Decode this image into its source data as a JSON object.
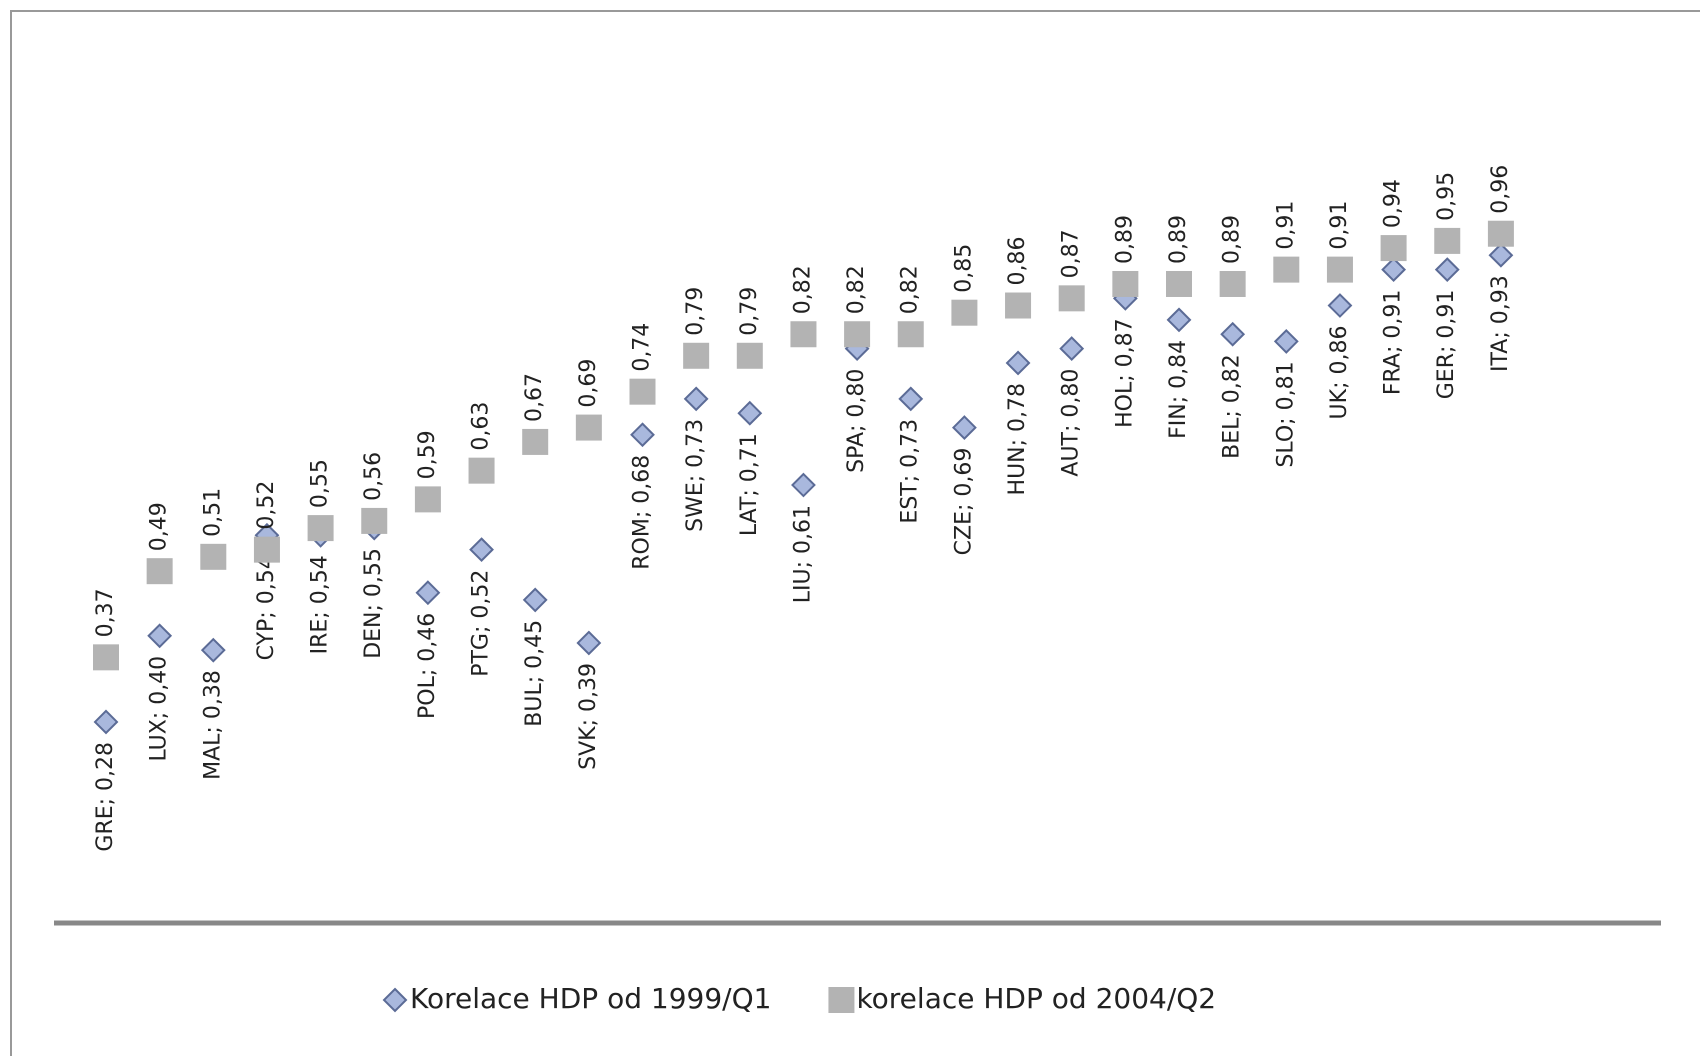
{
  "chart_data": {
    "type": "line",
    "connect_points": false,
    "legend": "bottom",
    "ylim": [
      0,
      1.2
    ],
    "series": [
      {
        "name": "Korelace HDP od 1999/Q1",
        "color": "#a9b8dd",
        "marker": "diamond",
        "label_side": "below",
        "values": [
          0.28,
          0.4,
          0.38,
          0.54,
          0.54,
          0.55,
          0.46,
          0.52,
          0.45,
          0.39,
          0.68,
          0.73,
          0.71,
          0.61,
          0.8,
          0.73,
          0.69,
          0.78,
          0.8,
          0.87,
          0.84,
          0.82,
          0.81,
          0.86,
          0.91,
          0.91,
          0.93
        ],
        "value_labels": [
          "GRE; 0,28",
          "LUX; 0,40",
          "MAL; 0,38",
          "CYP; 0,54",
          "IRE; 0,54",
          "DEN; 0,55",
          "POL; 0,46",
          "PTG; 0,52",
          "BUL; 0,45",
          "SVK; 0,39",
          "ROM; 0,68",
          "SWE; 0,73",
          "LAT; 0,71",
          "LIU; 0,61",
          "SPA; 0,80",
          "EST; 0,73",
          "CZE; 0,69",
          "HUN; 0,78",
          "AUT; 0,80",
          "HOL; 0,87",
          "FIN; 0,84",
          "BEL; 0,82",
          "SLO; 0,81",
          "UK; 0,86",
          "FRA; 0,91",
          "GER; 0,91",
          "ITA; 0,93"
        ]
      },
      {
        "name": "korelace HDP od 2004/Q2",
        "color": "#b3b3b3",
        "marker": "square",
        "label_side": "above",
        "values": [
          0.37,
          0.49,
          0.51,
          0.52,
          0.55,
          0.56,
          0.59,
          0.63,
          0.67,
          0.69,
          0.74,
          0.79,
          0.79,
          0.82,
          0.82,
          0.82,
          0.85,
          0.86,
          0.87,
          0.89,
          0.89,
          0.89,
          0.91,
          0.91,
          0.94,
          0.95,
          0.96
        ],
        "value_labels": [
          "0,37",
          "0,49",
          "0,51",
          "0,52",
          "0,55",
          "0,56",
          "0,59",
          "0,63",
          "0,67",
          "0,69",
          "0,74",
          "0,79",
          "0,79",
          "0,82",
          "0,82",
          "0,82",
          "0,85",
          "0,86",
          "0,87",
          "0,89",
          "0,89",
          "0,89",
          "0,91",
          "0,91",
          "0,94",
          "0,95",
          "0,96"
        ]
      }
    ]
  }
}
